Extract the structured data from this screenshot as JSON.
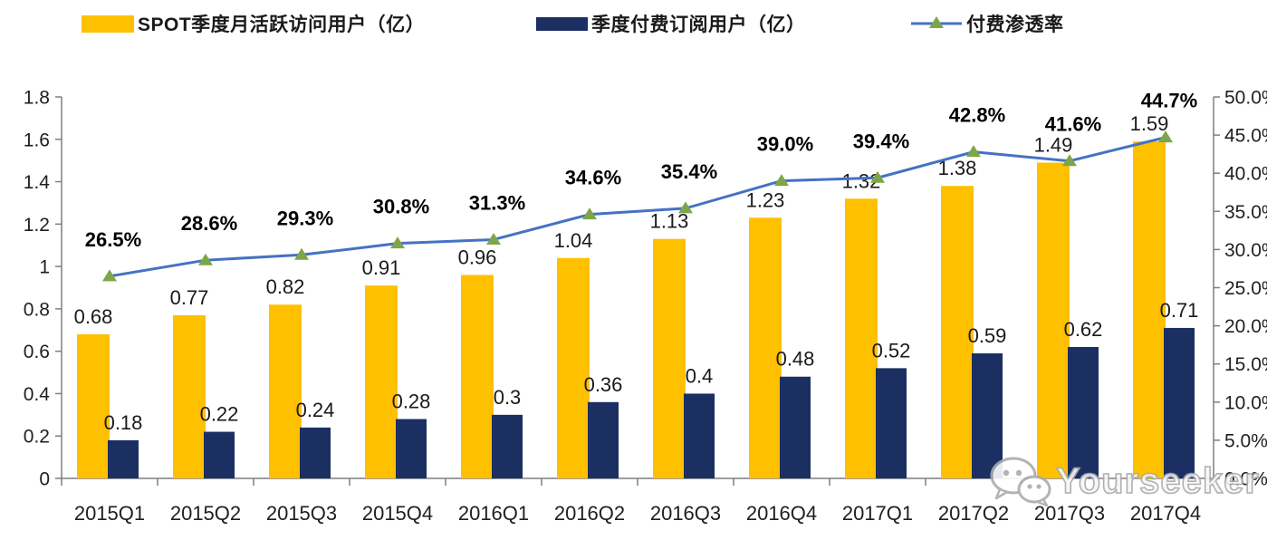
{
  "page": {
    "background": "#ffffff"
  },
  "legend": [
    {
      "label": "SPOT季度月活跃访问用户（亿）",
      "swatch": "bar",
      "color": "#FFC000"
    },
    {
      "label": "季度付费订阅用户（亿）",
      "swatch": "bar",
      "color": "#1B2F63"
    },
    {
      "label": "付费渗透率",
      "swatch": "line-triangle",
      "line_color": "#4472C4",
      "marker_color": "#7EA648"
    }
  ],
  "watermark": {
    "text": "Yourseeker",
    "icon": "wechat-icon"
  },
  "chart_data": {
    "type": "bar",
    "subtype": "clustered-bars-with-line",
    "categories": [
      "2015Q1",
      "2015Q2",
      "2015Q3",
      "2015Q4",
      "2016Q1",
      "2016Q2",
      "2016Q3",
      "2016Q4",
      "2017Q1",
      "2017Q2",
      "2017Q3",
      "2017Q4"
    ],
    "series": [
      {
        "name": "SPOT季度月活跃访问用户（亿）",
        "type": "bar",
        "axis": "left",
        "color": "#FFC000",
        "values": [
          0.68,
          0.77,
          0.82,
          0.91,
          0.96,
          1.04,
          1.13,
          1.23,
          1.32,
          1.38,
          1.49,
          1.59
        ],
        "labels": [
          "0.68",
          "0.77",
          "0.82",
          "0.91",
          "0.96",
          "1.04",
          "1.13",
          "1.23",
          "1.32",
          "1.38",
          "1.49",
          "1.59"
        ]
      },
      {
        "name": "季度付费订阅用户（亿）",
        "type": "bar",
        "axis": "left",
        "color": "#1B2F63",
        "values": [
          0.18,
          0.22,
          0.24,
          0.28,
          0.3,
          0.36,
          0.4,
          0.48,
          0.52,
          0.59,
          0.62,
          0.71
        ],
        "labels": [
          "0.18",
          "0.22",
          "0.24",
          "0.28",
          "0.3",
          "0.36",
          "0.4",
          "0.48",
          "0.52",
          "0.59",
          "0.62",
          "0.71"
        ]
      },
      {
        "name": "付费渗透率",
        "type": "line",
        "axis": "right",
        "color": "#4472C4",
        "marker": "triangle",
        "marker_color": "#7EA648",
        "values": [
          26.5,
          28.6,
          29.3,
          30.8,
          31.3,
          34.6,
          35.4,
          39.0,
          39.4,
          42.8,
          41.6,
          44.7
        ],
        "labels": [
          "26.5%",
          "28.6%",
          "29.3%",
          "30.8%",
          "31.3%",
          "34.6%",
          "35.4%",
          "39.0%",
          "39.4%",
          "42.8%",
          "41.6%",
          "44.7%"
        ]
      }
    ],
    "left_axis": {
      "min": 0,
      "max": 1.8,
      "step": 0.2,
      "tick_labels": [
        "0",
        "0.2",
        "0.4",
        "0.6",
        "0.8",
        "1",
        "1.2",
        "1.4",
        "1.6",
        "1.8"
      ]
    },
    "right_axis": {
      "min": 0,
      "max": 50,
      "step": 5,
      "tick_labels": [
        "0.0%",
        "5.0%",
        "10.0%",
        "15.0%",
        "20.0%",
        "25.0%",
        "30.0%",
        "35.0%",
        "40.0%",
        "45.0%",
        "50.0%"
      ]
    },
    "grid": false,
    "legend_position": "top",
    "title": ""
  }
}
